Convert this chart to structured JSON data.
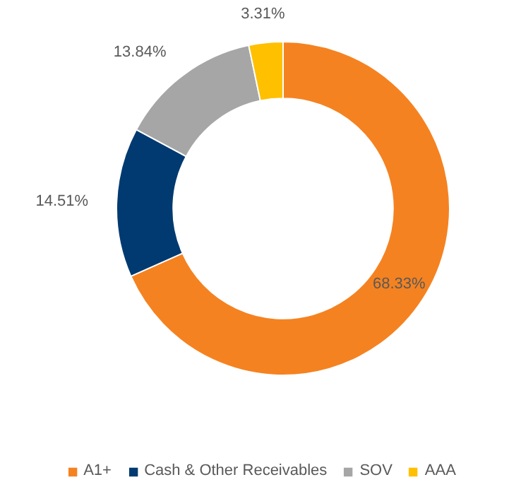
{
  "chart_data": {
    "type": "donut",
    "categories": [
      "A1+",
      "Cash & Other Receivables",
      "SOV",
      "AAA"
    ],
    "values": [
      68.33,
      14.51,
      13.84,
      3.31
    ],
    "colors": [
      "#f58220",
      "#003a70",
      "#a6a6a6",
      "#ffc000"
    ],
    "value_labels": [
      "68.33%",
      "14.51%",
      "13.84%",
      "3.31%"
    ],
    "legend": "bottom"
  }
}
